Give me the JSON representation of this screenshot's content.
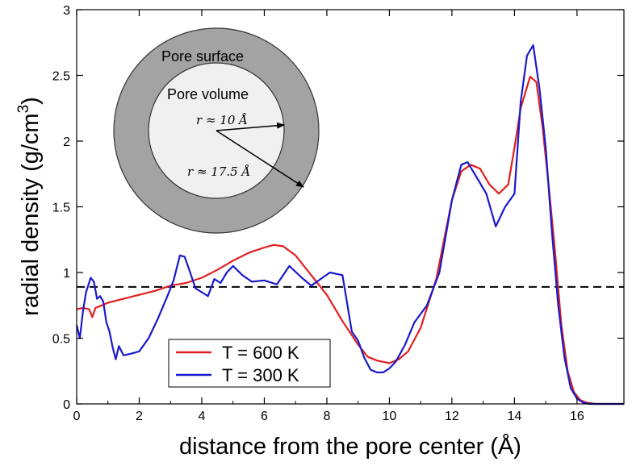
{
  "chart_data": {
    "type": "line",
    "xlabel": "distance from the pore center (Å)",
    "ylabel": "radial density (g/cm",
    "ylabel_superscript": "3",
    "ylabel_close": ")",
    "xlim": [
      0,
      17.5
    ],
    "ylim": [
      0,
      3
    ],
    "xticks": [
      0,
      2,
      4,
      6,
      8,
      10,
      12,
      14,
      16
    ],
    "yticks": [
      0,
      0.5,
      1,
      1.5,
      2,
      2.5,
      3
    ],
    "xtick_labels": [
      "0",
      "2",
      "4",
      "6",
      "8",
      "10",
      "12",
      "14",
      "16"
    ],
    "ytick_labels": [
      "0",
      "0.5",
      "1",
      "1.5",
      "2",
      "2.5",
      "3"
    ],
    "grid": false,
    "legend_position": "lower-left",
    "reference_line": {
      "y": 0.89,
      "style": "dashed",
      "color": "#000000"
    },
    "series": [
      {
        "name": "T = 600 K",
        "color": "#e02020",
        "x": [
          0,
          0.2,
          0.4,
          0.5,
          0.6,
          0.8,
          1,
          1.5,
          2,
          2.5,
          3,
          3.5,
          4,
          4.5,
          5,
          5.5,
          6,
          6.3,
          6.6,
          7,
          7.5,
          8,
          8.5,
          9,
          9.3,
          9.6,
          9.8,
          10,
          10.3,
          10.6,
          11,
          11.5,
          12,
          12.3,
          12.6,
          12.9,
          13.2,
          13.5,
          13.8,
          14,
          14.2,
          14.5,
          14.7,
          14.9,
          15.1,
          15.3,
          15.5,
          15.7,
          15.9,
          16.1,
          16.3,
          16.6,
          17,
          17.5
        ],
        "y": [
          0.72,
          0.73,
          0.72,
          0.66,
          0.73,
          0.75,
          0.77,
          0.8,
          0.83,
          0.86,
          0.9,
          0.92,
          0.96,
          1.02,
          1.09,
          1.15,
          1.19,
          1.21,
          1.2,
          1.13,
          0.98,
          0.83,
          0.63,
          0.45,
          0.36,
          0.33,
          0.32,
          0.31,
          0.34,
          0.4,
          0.58,
          0.95,
          1.55,
          1.77,
          1.82,
          1.79,
          1.67,
          1.6,
          1.67,
          1.95,
          2.25,
          2.49,
          2.45,
          2.1,
          1.65,
          1.15,
          0.6,
          0.25,
          0.09,
          0.03,
          0.01,
          0,
          0,
          0
        ]
      },
      {
        "name": "T = 300 K",
        "color": "#1a1acc",
        "x": [
          0,
          0.1,
          0.2,
          0.3,
          0.45,
          0.55,
          0.65,
          0.75,
          0.85,
          0.95,
          1.05,
          1.15,
          1.25,
          1.35,
          1.5,
          1.7,
          2,
          2.3,
          2.6,
          2.9,
          3.1,
          3.3,
          3.45,
          3.6,
          3.8,
          4,
          4.2,
          4.4,
          4.6,
          4.8,
          5,
          5.3,
          5.6,
          6,
          6.4,
          6.8,
          7.2,
          7.5,
          7.8,
          8.1,
          8.5,
          8.8,
          9,
          9.2,
          9.4,
          9.6,
          9.8,
          10,
          10.2,
          10.5,
          10.8,
          11.2,
          11.6,
          12,
          12.3,
          12.5,
          12.8,
          13.1,
          13.4,
          13.7,
          14,
          14.2,
          14.4,
          14.6,
          14.8,
          15,
          15.2,
          15.4,
          15.6,
          15.8,
          16,
          16.2,
          16.4,
          16.7,
          17,
          17.5
        ],
        "y": [
          0.6,
          0.5,
          0.7,
          0.85,
          0.96,
          0.93,
          0.8,
          0.82,
          0.78,
          0.62,
          0.55,
          0.43,
          0.34,
          0.44,
          0.37,
          0.38,
          0.4,
          0.5,
          0.65,
          0.82,
          0.94,
          1.13,
          1.12,
          1.02,
          0.88,
          0.85,
          0.82,
          0.95,
          0.92,
          1.0,
          1.05,
          0.98,
          0.93,
          0.94,
          0.91,
          1.05,
          0.96,
          0.9,
          0.95,
          1.0,
          0.98,
          0.55,
          0.48,
          0.35,
          0.26,
          0.24,
          0.24,
          0.27,
          0.32,
          0.45,
          0.62,
          0.75,
          1.0,
          1.55,
          1.82,
          1.84,
          1.72,
          1.6,
          1.35,
          1.5,
          1.6,
          2.3,
          2.65,
          2.73,
          2.4,
          1.95,
          1.3,
          0.75,
          0.35,
          0.12,
          0.04,
          0.01,
          0,
          0,
          0,
          0
        ]
      }
    ],
    "inset": {
      "outer_label": "Pore surface",
      "inner_label": "Pore volume",
      "r_inner_label": "r ≈ 10 Å",
      "r_outer_label": "r ≈ 17.5 Å",
      "outer_color": "#a3a3a3",
      "inner_color": "#f0f0f0"
    }
  }
}
